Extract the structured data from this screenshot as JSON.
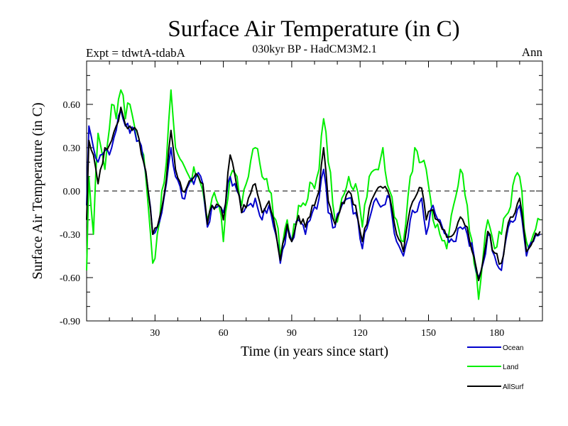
{
  "chart_data": {
    "type": "line",
    "title": "Surface Air Temperature (in C)",
    "subtitle": "030kyr BP - HadCM3M2.1",
    "left_label": "Expt = tdwtA-tdabA",
    "right_label": "Ann",
    "xlabel": "Time (in years since start)",
    "ylabel": "Surface Air Temperature (in C)",
    "xlim": [
      0,
      200
    ],
    "ylim": [
      -0.9,
      0.9
    ],
    "xticks": [
      30,
      60,
      90,
      120,
      150,
      180
    ],
    "xtick_labels": [
      "30",
      "60",
      "90",
      "120",
      "150",
      "180"
    ],
    "yticks": [
      -0.9,
      -0.6,
      -0.3,
      0.0,
      0.3,
      0.6
    ],
    "ytick_labels": [
      "-0.90",
      "-0.60",
      "-0.30",
      "0.00",
      "0.30",
      "0.60"
    ],
    "zero_line": "dashed",
    "legend_position": "bottom-right, below plot",
    "series": [
      {
        "name": "Ocean",
        "color": "#0000cc",
        "anchors": [
          [
            0,
            -0.1
          ],
          [
            1,
            0.45
          ],
          [
            3,
            0.3
          ],
          [
            5,
            0.2
          ],
          [
            8,
            0.28
          ],
          [
            11,
            0.3
          ],
          [
            13,
            0.42
          ],
          [
            15,
            0.56
          ],
          [
            17,
            0.45
          ],
          [
            19,
            0.4
          ],
          [
            21,
            0.42
          ],
          [
            23,
            0.35
          ],
          [
            25,
            0.2
          ],
          [
            27,
            0.0
          ],
          [
            29,
            -0.3
          ],
          [
            31,
            -0.25
          ],
          [
            33,
            -0.15
          ],
          [
            35,
            0.05
          ],
          [
            37,
            0.3
          ],
          [
            39,
            0.1
          ],
          [
            42,
            -0.05
          ],
          [
            45,
            0.05
          ],
          [
            48,
            0.1
          ],
          [
            51,
            0.05
          ],
          [
            53,
            -0.25
          ],
          [
            55,
            -0.1
          ],
          [
            58,
            -0.1
          ],
          [
            60,
            -0.15
          ],
          [
            63,
            0.1
          ],
          [
            66,
            0.0
          ],
          [
            68,
            -0.15
          ],
          [
            71,
            -0.1
          ],
          [
            74,
            -0.05
          ],
          [
            77,
            -0.2
          ],
          [
            80,
            -0.1
          ],
          [
            83,
            -0.3
          ],
          [
            85,
            -0.5
          ],
          [
            88,
            -0.25
          ],
          [
            90,
            -0.35
          ],
          [
            93,
            -0.2
          ],
          [
            96,
            -0.3
          ],
          [
            99,
            -0.15
          ],
          [
            102,
            -0.05
          ],
          [
            104,
            0.15
          ],
          [
            106,
            -0.15
          ],
          [
            109,
            -0.25
          ],
          [
            112,
            -0.1
          ],
          [
            115,
            -0.05
          ],
          [
            118,
            -0.15
          ],
          [
            121,
            -0.4
          ],
          [
            124,
            -0.2
          ],
          [
            127,
            -0.05
          ],
          [
            130,
            -0.1
          ],
          [
            133,
            -0.05
          ],
          [
            136,
            -0.35
          ],
          [
            139,
            -0.45
          ],
          [
            142,
            -0.2
          ],
          [
            144,
            -0.15
          ],
          [
            147,
            -0.05
          ],
          [
            149,
            -0.3
          ],
          [
            152,
            -0.1
          ],
          [
            155,
            -0.2
          ],
          [
            158,
            -0.3
          ],
          [
            161,
            -0.35
          ],
          [
            164,
            -0.25
          ],
          [
            167,
            -0.3
          ],
          [
            170,
            -0.45
          ],
          [
            172,
            -0.6
          ],
          [
            174,
            -0.5
          ],
          [
            176,
            -0.3
          ],
          [
            179,
            -0.45
          ],
          [
            182,
            -0.55
          ],
          [
            185,
            -0.25
          ],
          [
            188,
            -0.2
          ],
          [
            190,
            -0.1
          ],
          [
            193,
            -0.45
          ],
          [
            196,
            -0.35
          ],
          [
            199,
            -0.3
          ]
        ]
      },
      {
        "name": "Land",
        "color": "#00ee00",
        "anchors": [
          [
            0,
            -0.55
          ],
          [
            1,
            0.1
          ],
          [
            3,
            -0.3
          ],
          [
            5,
            0.4
          ],
          [
            8,
            0.15
          ],
          [
            11,
            0.6
          ],
          [
            13,
            0.5
          ],
          [
            15,
            0.7
          ],
          [
            17,
            0.5
          ],
          [
            19,
            0.6
          ],
          [
            21,
            0.45
          ],
          [
            23,
            0.35
          ],
          [
            25,
            0.25
          ],
          [
            27,
            -0.1
          ],
          [
            29,
            -0.5
          ],
          [
            31,
            -0.3
          ],
          [
            33,
            0.0
          ],
          [
            35,
            0.2
          ],
          [
            37,
            0.7
          ],
          [
            39,
            0.3
          ],
          [
            42,
            0.2
          ],
          [
            45,
            0.1
          ],
          [
            48,
            0.1
          ],
          [
            51,
            0.0
          ],
          [
            53,
            -0.2
          ],
          [
            55,
            -0.05
          ],
          [
            58,
            -0.1
          ],
          [
            60,
            -0.35
          ],
          [
            63,
            0.1
          ],
          [
            66,
            0.1
          ],
          [
            68,
            -0.1
          ],
          [
            71,
            0.1
          ],
          [
            74,
            0.3
          ],
          [
            77,
            0.1
          ],
          [
            80,
            0.0
          ],
          [
            83,
            -0.2
          ],
          [
            85,
            -0.45
          ],
          [
            88,
            -0.2
          ],
          [
            90,
            -0.35
          ],
          [
            93,
            -0.1
          ],
          [
            96,
            -0.1
          ],
          [
            99,
            0.05
          ],
          [
            102,
            0.15
          ],
          [
            104,
            0.5
          ],
          [
            106,
            0.2
          ],
          [
            109,
            -0.2
          ],
          [
            112,
            -0.05
          ],
          [
            115,
            0.1
          ],
          [
            118,
            0.05
          ],
          [
            121,
            -0.25
          ],
          [
            124,
            0.1
          ],
          [
            127,
            0.15
          ],
          [
            130,
            0.3
          ],
          [
            133,
            0.0
          ],
          [
            136,
            -0.2
          ],
          [
            139,
            -0.35
          ],
          [
            142,
            0.1
          ],
          [
            144,
            0.3
          ],
          [
            147,
            0.2
          ],
          [
            149,
            0.15
          ],
          [
            152,
            -0.2
          ],
          [
            155,
            -0.3
          ],
          [
            158,
            -0.4
          ],
          [
            161,
            -0.1
          ],
          [
            164,
            0.15
          ],
          [
            167,
            -0.1
          ],
          [
            170,
            -0.5
          ],
          [
            172,
            -0.75
          ],
          [
            174,
            -0.45
          ],
          [
            176,
            -0.2
          ],
          [
            179,
            -0.4
          ],
          [
            182,
            -0.3
          ],
          [
            185,
            -0.15
          ],
          [
            188,
            0.1
          ],
          [
            190,
            0.1
          ],
          [
            193,
            -0.35
          ],
          [
            196,
            -0.3
          ],
          [
            199,
            -0.2
          ]
        ]
      },
      {
        "name": "AllSurf",
        "color": "#000000",
        "anchors": [
          [
            0,
            -0.2
          ],
          [
            1,
            0.35
          ],
          [
            3,
            0.25
          ],
          [
            5,
            0.05
          ],
          [
            8,
            0.3
          ],
          [
            11,
            0.35
          ],
          [
            13,
            0.45
          ],
          [
            15,
            0.58
          ],
          [
            17,
            0.46
          ],
          [
            19,
            0.45
          ],
          [
            21,
            0.44
          ],
          [
            23,
            0.36
          ],
          [
            25,
            0.2
          ],
          [
            27,
            0.0
          ],
          [
            29,
            -0.3
          ],
          [
            31,
            -0.25
          ],
          [
            33,
            -0.12
          ],
          [
            35,
            0.08
          ],
          [
            37,
            0.42
          ],
          [
            39,
            0.15
          ],
          [
            42,
            0.0
          ],
          [
            45,
            0.07
          ],
          [
            48,
            0.12
          ],
          [
            51,
            0.05
          ],
          [
            53,
            -0.23
          ],
          [
            55,
            -0.1
          ],
          [
            58,
            -0.1
          ],
          [
            60,
            -0.2
          ],
          [
            63,
            0.25
          ],
          [
            66,
            0.02
          ],
          [
            68,
            -0.15
          ],
          [
            71,
            -0.05
          ],
          [
            74,
            0.05
          ],
          [
            77,
            -0.15
          ],
          [
            80,
            -0.07
          ],
          [
            83,
            -0.28
          ],
          [
            85,
            -0.48
          ],
          [
            88,
            -0.23
          ],
          [
            90,
            -0.35
          ],
          [
            93,
            -0.17
          ],
          [
            96,
            -0.25
          ],
          [
            99,
            -0.1
          ],
          [
            102,
            0.0
          ],
          [
            104,
            0.3
          ],
          [
            106,
            -0.07
          ],
          [
            109,
            -0.23
          ],
          [
            112,
            -0.08
          ],
          [
            115,
            0.0
          ],
          [
            118,
            -0.1
          ],
          [
            121,
            -0.35
          ],
          [
            124,
            -0.12
          ],
          [
            127,
            0.0
          ],
          [
            130,
            0.02
          ],
          [
            133,
            -0.04
          ],
          [
            136,
            -0.3
          ],
          [
            139,
            -0.42
          ],
          [
            142,
            -0.12
          ],
          [
            144,
            -0.05
          ],
          [
            147,
            0.02
          ],
          [
            149,
            -0.2
          ],
          [
            152,
            -0.13
          ],
          [
            155,
            -0.22
          ],
          [
            158,
            -0.32
          ],
          [
            161,
            -0.3
          ],
          [
            164,
            -0.18
          ],
          [
            167,
            -0.25
          ],
          [
            170,
            -0.46
          ],
          [
            172,
            -0.62
          ],
          [
            174,
            -0.48
          ],
          [
            176,
            -0.28
          ],
          [
            179,
            -0.43
          ],
          [
            182,
            -0.5
          ],
          [
            185,
            -0.22
          ],
          [
            188,
            -0.15
          ],
          [
            190,
            -0.05
          ],
          [
            193,
            -0.42
          ],
          [
            196,
            -0.34
          ],
          [
            199,
            -0.28
          ]
        ]
      }
    ]
  }
}
